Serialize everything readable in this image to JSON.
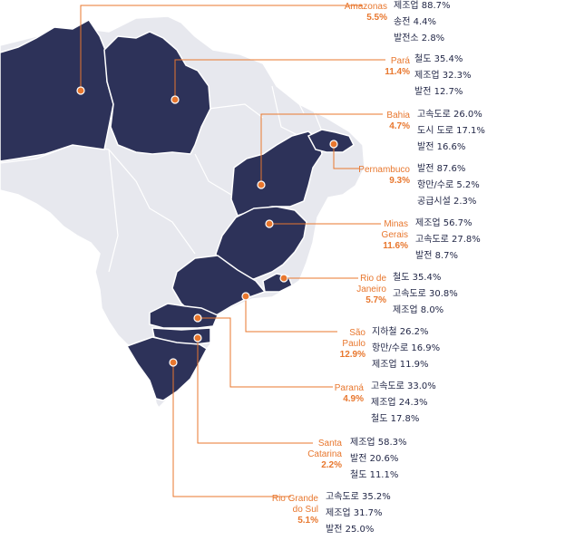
{
  "colors": {
    "highlight_fill": "#2d3259",
    "background_fill": "#e7e8ee",
    "border": "#ffffff",
    "accent": "#e8772e",
    "text": "#1f2444"
  },
  "states": [
    {
      "key": "amazonas",
      "name": "Amazonas",
      "pct": "5.5%",
      "items": [
        "제조업 88.7%",
        "송전 4.4%",
        "발전소 2.8%"
      ]
    },
    {
      "key": "para",
      "name": "Pará",
      "pct": "11.4%",
      "items": [
        "철도 35.4%",
        "제조업 32.3%",
        "발전 12.7%"
      ]
    },
    {
      "key": "bahia",
      "name": "Bahia",
      "pct": "4.7%",
      "items": [
        "고속도로 26.0%",
        "도시 도로 17.1%",
        "발전 16.6%"
      ]
    },
    {
      "key": "pernambuco",
      "name": "Pernambuco",
      "pct": "9.3%",
      "items": [
        "발전 87.6%",
        "항만/수로 5.2%",
        "공급시설 2.3%"
      ]
    },
    {
      "key": "minas-gerais",
      "name": "Minas Gerais",
      "pct": "11.6%",
      "items": [
        "제조업 56.7%",
        "고속도로 27.8%",
        "발전 8.7%"
      ]
    },
    {
      "key": "rio-de-janeiro",
      "name": "Rio de Janeiro",
      "pct": "5.7%",
      "items": [
        "철도 35.4%",
        "고속도로 30.8%",
        "제조업 8.0%"
      ]
    },
    {
      "key": "sao-paulo",
      "name": "São Paulo",
      "pct": "12.9%",
      "items": [
        "지하철 26.2%",
        "항만/수로 16.9%",
        "제조업 11.9%"
      ]
    },
    {
      "key": "parana",
      "name": "Paraná",
      "pct": "4.9%",
      "items": [
        "고속도로 33.0%",
        "제조업 24.3%",
        "철도 17.8%"
      ]
    },
    {
      "key": "santa-catarina",
      "name": "Santa Catarina",
      "pct": "2.2%",
      "items": [
        "제조업 58.3%",
        "발전 20.6%",
        "철도 11.1%"
      ]
    },
    {
      "key": "rio-grande-do-sul",
      "name": "Rio Grande do Sul",
      "pct": "5.1%",
      "items": [
        "고속도로 35.2%",
        "제조업 31.7%",
        "발전 25.0%"
      ]
    }
  ]
}
